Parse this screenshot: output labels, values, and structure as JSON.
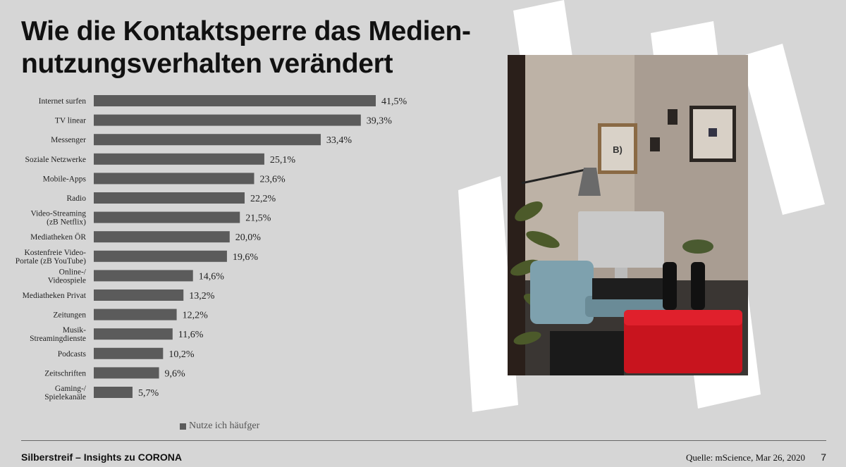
{
  "title_lines": [
    "Wie die Kontaktsperre das Medien-",
    "nutzungsverhalten verändert"
  ],
  "chart_data": {
    "type": "bar",
    "orientation": "horizontal",
    "categories": [
      "Internet surfen",
      "TV linear",
      "Messenger",
      "Soziale Netzwerke",
      "Mobile-Apps",
      "Radio",
      "Video-Streaming\n(zB Netflix)",
      "Mediatheken ÖR",
      "Kostenfreie Video-\nPortale (zB YouTube)",
      "Online-/\nVideospiele",
      "Mediatheken Privat",
      "Zeitungen",
      "Musik-\nStreamingdienste",
      "Podcasts",
      "Zeitschriften",
      "Gaming-/\nSpielekanäle"
    ],
    "series": [
      {
        "name": "Nutze ich häufger",
        "values": [
          41.5,
          39.3,
          33.4,
          25.1,
          23.6,
          22.2,
          21.5,
          20.0,
          19.6,
          14.6,
          13.2,
          12.2,
          11.6,
          10.2,
          9.6,
          5.7
        ],
        "labels": [
          "41,5%",
          "39,3%",
          "33,4%",
          "25,1%",
          "23,6%",
          "22,2%",
          "21,5%",
          "20,0%",
          "19,6%",
          "14,6%",
          "13,2%",
          "12,2%",
          "11,6%",
          "10,2%",
          "9,6%",
          "5,7%"
        ]
      }
    ],
    "xlim": [
      0,
      45
    ],
    "grid": false,
    "legend_position": "bottom",
    "bar_color": "#5b5b5b"
  },
  "legend": {
    "label": "Nutze ich häufger",
    "color": "#5b5b5b"
  },
  "photo": {
    "description_icon": "home-office-photo",
    "logo_text": "B)"
  },
  "footer": {
    "left": "Silberstreif – Insights zu CORONA",
    "source": "Quelle: mScience, Mar 26, 2020",
    "page": "7"
  },
  "colors": {
    "background": "#d6d6d6",
    "bar": "#5b5b5b",
    "deco": "#ffffff"
  }
}
